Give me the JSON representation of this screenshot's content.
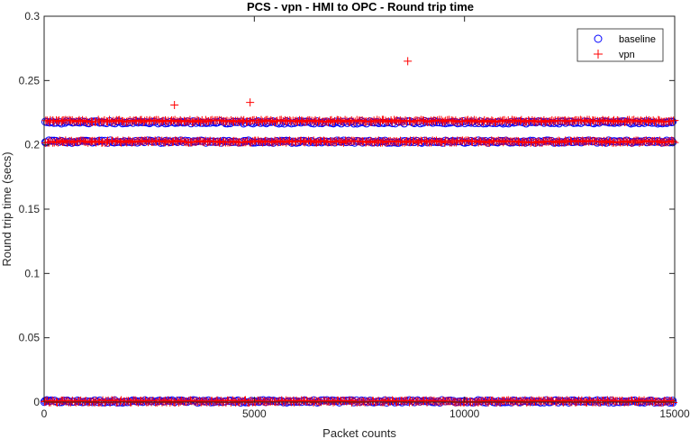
{
  "chart_data": {
    "type": "scatter",
    "title": "PCS - vpn - HMI to OPC - Round trip time",
    "xlabel": "Packet counts",
    "ylabel": "Round trip time (secs)",
    "xlim": [
      0,
      15000
    ],
    "ylim": [
      0,
      0.3
    ],
    "x_ticks": [
      0,
      5000,
      10000,
      15000
    ],
    "x_tick_labels": [
      "0",
      "5000",
      "10000",
      "15000"
    ],
    "y_ticks": [
      0,
      0.05,
      0.1,
      0.15,
      0.2,
      0.25,
      0.3
    ],
    "y_tick_labels": [
      "0",
      "0.05",
      "0.1",
      "0.15",
      "0.2",
      "0.25",
      "0.3"
    ],
    "grid": false,
    "legend_position": "top-right",
    "series": [
      {
        "name": "baseline",
        "marker": "circle",
        "color": "#0000ff",
        "bands": [
          {
            "y": 0.0005,
            "x_start": 0,
            "x_end": 15000,
            "spacing": 60
          },
          {
            "y": 0.2025,
            "x_start": 0,
            "x_end": 15000,
            "spacing": 60
          },
          {
            "y": 0.2175,
            "x_start": 0,
            "x_end": 15000,
            "spacing": 60
          }
        ],
        "points": [
          {
            "x": 30,
            "y": 0.218
          },
          {
            "x": 14950,
            "y": 0.218
          },
          {
            "x": 30,
            "y": 0.202
          },
          {
            "x": 14950,
            "y": 0.202
          },
          {
            "x": 30,
            "y": 0.001
          },
          {
            "x": 14950,
            "y": 0.001
          }
        ]
      },
      {
        "name": "vpn",
        "marker": "plus",
        "color": "#ff0000",
        "bands": [
          {
            "y": 0.0005,
            "x_start": 0,
            "x_end": 15000,
            "spacing": 40
          },
          {
            "y": 0.2025,
            "x_start": 0,
            "x_end": 15000,
            "spacing": 40
          },
          {
            "y": 0.2185,
            "x_start": 0,
            "x_end": 15000,
            "spacing": 40
          }
        ],
        "points": [
          {
            "x": 3100,
            "y": 0.231
          },
          {
            "x": 4900,
            "y": 0.233
          },
          {
            "x": 8650,
            "y": 0.265
          }
        ]
      }
    ]
  },
  "legend": {
    "entries": [
      {
        "label": "baseline",
        "marker": "circle",
        "color": "#0000ff"
      },
      {
        "label": "vpn",
        "marker": "plus",
        "color": "#ff0000"
      }
    ]
  }
}
